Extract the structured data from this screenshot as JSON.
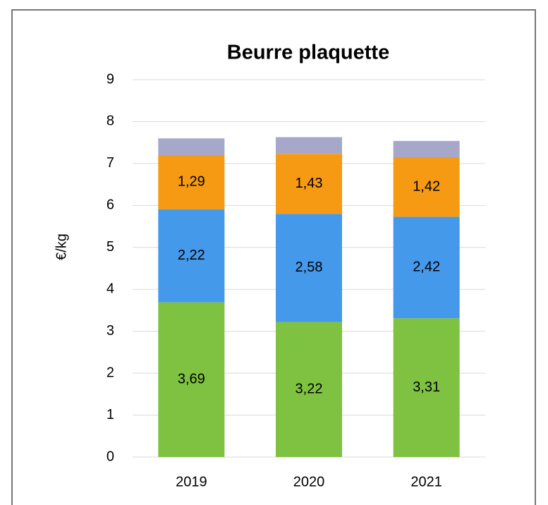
{
  "chart_data": {
    "type": "stacked_bar",
    "title": "Beurre plaquette",
    "y_label": "€/kg",
    "categories": [
      "2019",
      "2020",
      "2021"
    ],
    "series": [
      {
        "color": "#7fc241",
        "values": [
          3.69,
          3.22,
          3.31
        ],
        "value_labels": [
          "3,69",
          "3,22",
          "3,31"
        ]
      },
      {
        "color": "#4499ea",
        "values": [
          2.22,
          2.58,
          2.42
        ],
        "value_labels": [
          "2,22",
          "2,58",
          "2,42"
        ]
      },
      {
        "color": "#f59a12",
        "values": [
          1.29,
          1.43,
          1.42
        ],
        "value_labels": [
          "1,29",
          "1,43",
          "1,42"
        ]
      },
      {
        "color": "#a7a7c9",
        "values": [
          0.4,
          0.4,
          0.39
        ]
      }
    ],
    "ylim": [
      0,
      9
    ],
    "yticks": [
      0,
      1,
      2,
      3,
      4,
      5,
      6,
      7,
      8,
      9
    ],
    "grid": true
  }
}
